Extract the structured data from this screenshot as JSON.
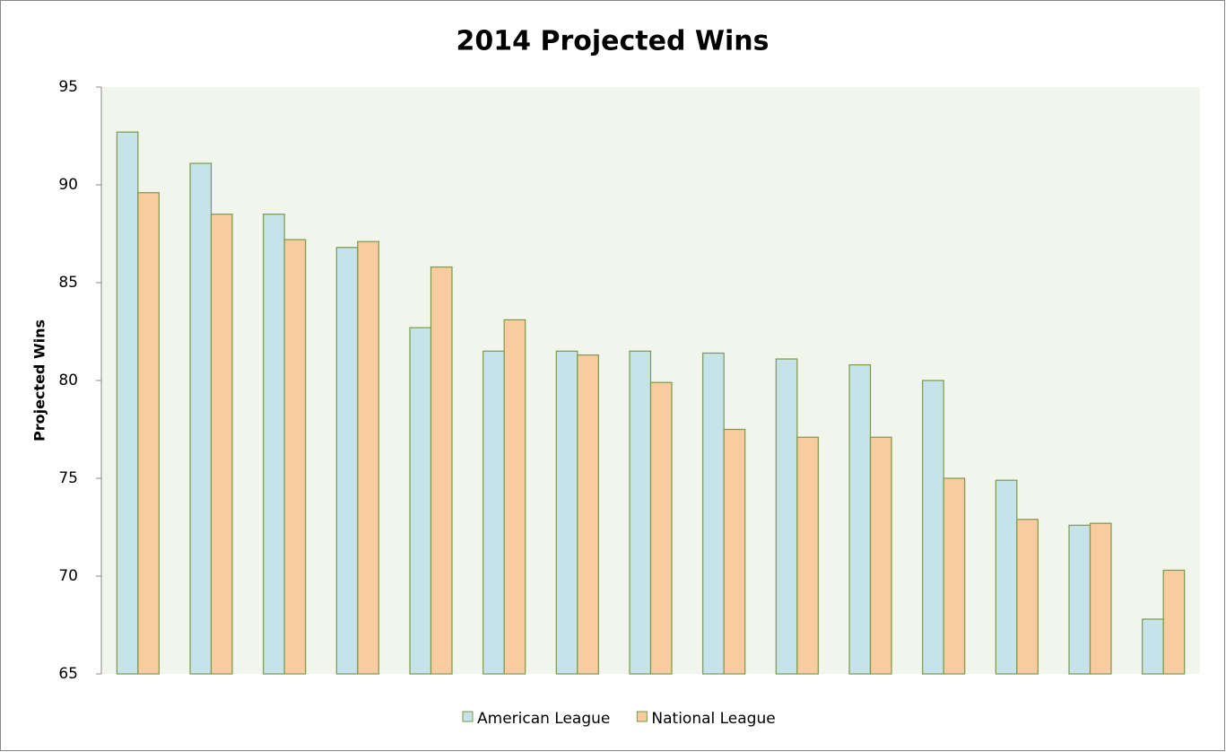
{
  "chart_data": {
    "type": "bar",
    "title": "2014 Projected Wins",
    "y_label": "Projected Wins",
    "categories": [
      null,
      null,
      null,
      null,
      null,
      null,
      null,
      null,
      null,
      null,
      null,
      null,
      null,
      null,
      null
    ],
    "series": [
      {
        "name": "American League",
        "color": "#c6e3ea",
        "values": [
          92.7,
          91.1,
          88.5,
          86.8,
          82.7,
          81.5,
          81.5,
          81.5,
          81.4,
          81.1,
          80.8,
          80.0,
          74.9,
          72.6,
          67.8
        ]
      },
      {
        "name": "National League",
        "color": "#f9cba0",
        "values": [
          89.6,
          88.5,
          87.2,
          87.1,
          85.8,
          83.1,
          81.3,
          79.9,
          77.5,
          77.1,
          77.1,
          75.0,
          72.9,
          72.7,
          70.3
        ]
      }
    ],
    "ylim": [
      65,
      95
    ],
    "yticks": [
      65,
      70,
      75,
      80,
      85,
      90,
      95
    ],
    "legend": "bottom"
  }
}
